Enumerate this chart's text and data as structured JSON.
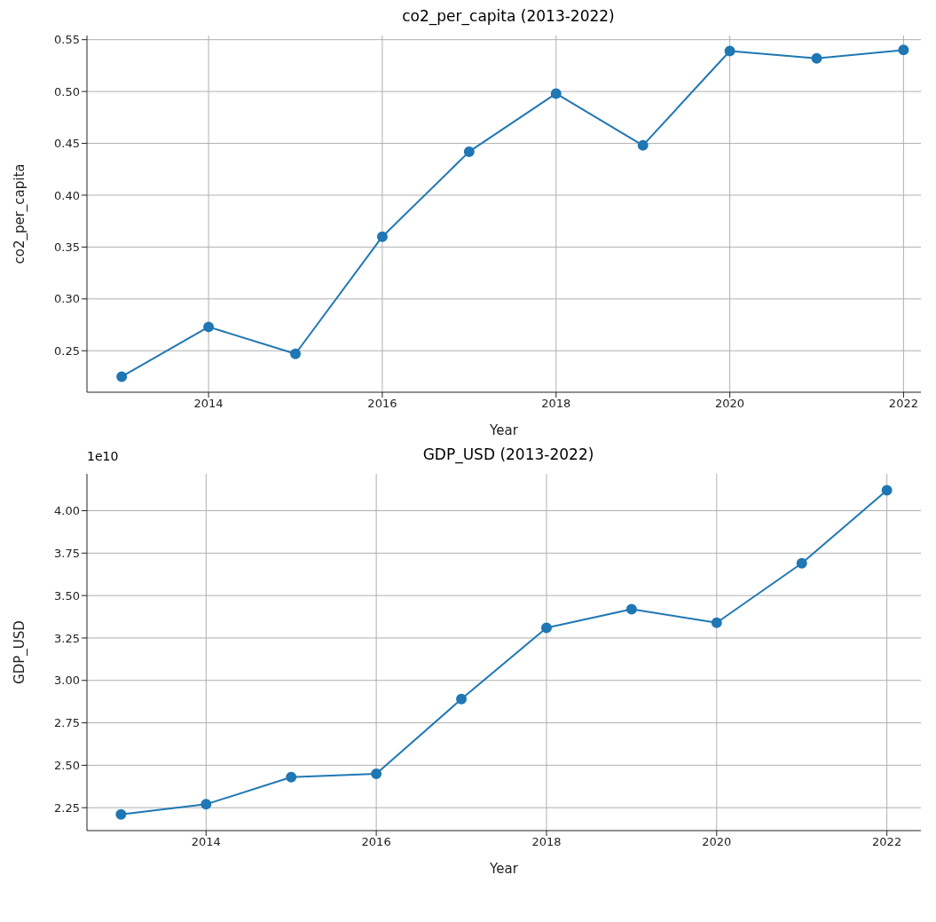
{
  "chart_data": [
    {
      "type": "line",
      "title": "co2_per_capita (2013-2022)",
      "xlabel": "Year",
      "ylabel": "co2_per_capita",
      "x": [
        2013,
        2014,
        2015,
        2016,
        2017,
        2018,
        2019,
        2020,
        2021,
        2022
      ],
      "series": [
        {
          "color": "#1f77b4",
          "values": [
            0.225,
            0.273,
            0.247,
            0.36,
            0.442,
            0.498,
            0.448,
            0.539,
            0.532,
            0.54
          ]
        }
      ],
      "xlim": [
        2012.6,
        2022.2
      ],
      "xticks": [
        2014,
        2016,
        2018,
        2020,
        2022
      ],
      "ylim": [
        0.21,
        0.554
      ],
      "yticks": [
        {
          "value": 0.25,
          "label": "0.25"
        },
        {
          "value": 0.3,
          "label": "0.30"
        },
        {
          "value": 0.35,
          "label": "0.35"
        },
        {
          "value": 0.4,
          "label": "0.40"
        },
        {
          "value": 0.45,
          "label": "0.45"
        },
        {
          "value": 0.5,
          "label": "0.50"
        },
        {
          "value": 0.55,
          "label": "0.55"
        }
      ],
      "grid": true,
      "marker": "circle",
      "line_style": "solid"
    },
    {
      "type": "line",
      "title": "GDP_USD (2013-2022)",
      "xlabel": "Year",
      "ylabel": "GDP_USD",
      "annotations": [
        "1e10"
      ],
      "x": [
        2013,
        2014,
        2015,
        2016,
        2017,
        2018,
        2019,
        2020,
        2021,
        2022
      ],
      "series": [
        {
          "color": "#1f77b4",
          "values": [
            2.21,
            2.27,
            2.43,
            2.45,
            2.89,
            3.31,
            3.42,
            3.34,
            3.69,
            4.12
          ]
        }
      ],
      "xlim": [
        2012.6,
        2022.4
      ],
      "xticks": [
        2014,
        2016,
        2018,
        2020,
        2022
      ],
      "ylim": [
        2.115,
        4.217
      ],
      "yticks": [
        {
          "value": 2.25,
          "label": "2.25"
        },
        {
          "value": 2.5,
          "label": "2.50"
        },
        {
          "value": 2.75,
          "label": "2.75"
        },
        {
          "value": 3,
          "label": "3.00"
        },
        {
          "value": 3.25,
          "label": "3.25"
        },
        {
          "value": 3.5,
          "label": "3.50"
        },
        {
          "value": 3.75,
          "label": "3.75"
        },
        {
          "value": 4,
          "label": "4.00"
        }
      ],
      "grid": true,
      "marker": "circle",
      "line_style": "solid"
    }
  ]
}
